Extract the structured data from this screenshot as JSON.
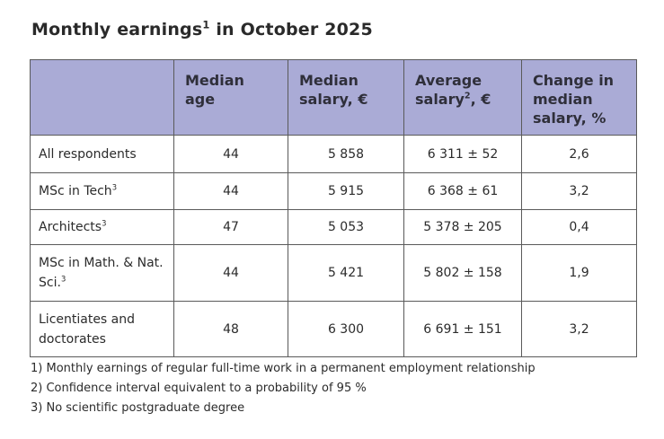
{
  "title": {
    "text": "Monthly earnings",
    "sup": "1",
    "rest": "in October 2025"
  },
  "table": {
    "headers": [
      {
        "text": "Median age"
      },
      {
        "text": "Median salary, €"
      },
      {
        "text": "Average salary",
        "sup": "2",
        "rest": ", €"
      },
      {
        "text": "Change in median salary, %"
      }
    ],
    "rows": [
      {
        "name": "All respondents",
        "values": [
          "44",
          "5 858",
          "6 311 ± 52",
          "2,6"
        ]
      },
      {
        "name": "MSc in Tech",
        "sup": "3",
        "values": [
          "44",
          "5 915",
          "6 368 ± 61",
          "3,2"
        ]
      },
      {
        "name": "Architects",
        "sup": "3",
        "values": [
          "47",
          "5 053",
          "5 378 ± 205",
          "0,4"
        ]
      },
      {
        "name": "MSc in Math. & Nat. Sci.",
        "sup": "3",
        "values": [
          "44",
          "5 421",
          "5 802 ± 158",
          "1,9"
        ]
      },
      {
        "name": "Licentiates and doctorates",
        "values": [
          "48",
          "6 300",
          "6 691 ± 151",
          "3,2"
        ]
      }
    ]
  },
  "footnotes": [
    "1) Monthly earnings of regular full-time work in a permanent employment relationship",
    "2) Confidence interval equivalent to a probability of 95 %",
    "3) No scientific postgraduate degree"
  ]
}
